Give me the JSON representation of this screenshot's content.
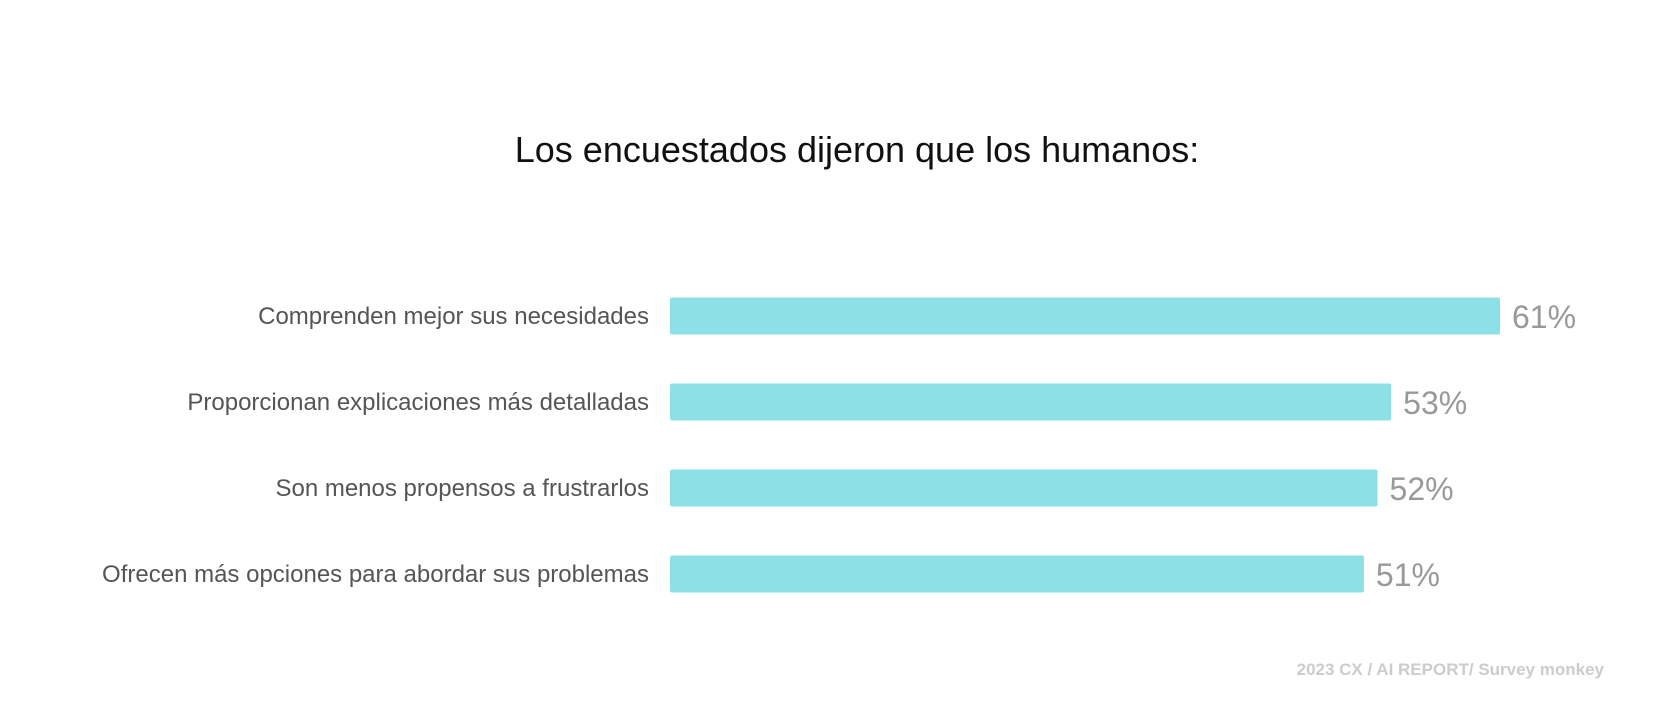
{
  "chart_data": {
    "type": "bar",
    "orientation": "horizontal",
    "title": "Los encuestados dijeron que los humanos:",
    "categories": [
      "Comprenden mejor sus necesidades",
      "Proporcionan explicaciones más detalladas",
      "Son menos propensos a frustrarlos",
      "Ofrecen más opciones para abordar sus problemas"
    ],
    "values": [
      61,
      53,
      52,
      51
    ],
    "value_labels": [
      "61%",
      "53%",
      "52%",
      "51%"
    ],
    "unit": "%",
    "xlim": [
      0,
      61
    ],
    "xlabel": "",
    "ylabel": "",
    "grid": false,
    "bar_color": "#8de1e6",
    "source": "2023 CX / AI REPORT/ Survey monkey"
  }
}
